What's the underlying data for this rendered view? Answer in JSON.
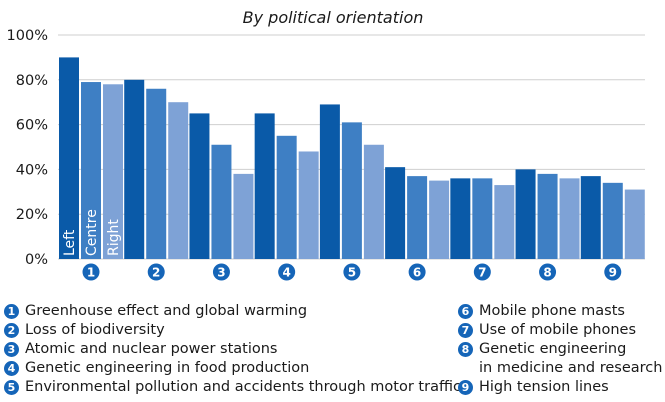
{
  "chart_data": {
    "type": "bar",
    "title": "By political orientation",
    "categories": [
      "1",
      "2",
      "3",
      "4",
      "5",
      "6",
      "7",
      "8",
      "9"
    ],
    "series": [
      {
        "name": "Left",
        "color": "#0a5aa8",
        "values": [
          90,
          80,
          65,
          65,
          69,
          41,
          36,
          40,
          37
        ]
      },
      {
        "name": "Centre",
        "color": "#3e7fc4",
        "values": [
          79,
          76,
          51,
          55,
          61,
          37,
          36,
          38,
          34
        ]
      },
      {
        "name": "Right",
        "color": "#7ea2d6",
        "values": [
          78,
          70,
          38,
          48,
          51,
          35,
          33,
          36,
          31
        ]
      }
    ],
    "ylim": [
      0,
      100
    ],
    "yticks": [
      0,
      20,
      40,
      60,
      80,
      100
    ],
    "ytick_labels": [
      "0%",
      "20%",
      "40%",
      "60%",
      "80%",
      "100%"
    ],
    "grid": true,
    "legend_placement": "inside-first-group",
    "badge_color": "#1565b8"
  },
  "legend": {
    "left": [
      {
        "num": "1",
        "text": "Greenhouse effect and global warming"
      },
      {
        "num": "2",
        "text": "Loss of biodiversity"
      },
      {
        "num": "3",
        "text": "Atomic and nuclear power stations"
      },
      {
        "num": "4",
        "text": "Genetic engineering in food production"
      },
      {
        "num": "5",
        "text": "Environmental pollution and accidents through motor traffic"
      }
    ],
    "right": [
      {
        "num": "6",
        "text": "Mobile phone masts"
      },
      {
        "num": "7",
        "text": "Use of mobile phones"
      },
      {
        "num": "8",
        "text": "Genetic engineering\nin medicine and research"
      },
      {
        "num": "9",
        "text": "High tension lines"
      }
    ]
  }
}
